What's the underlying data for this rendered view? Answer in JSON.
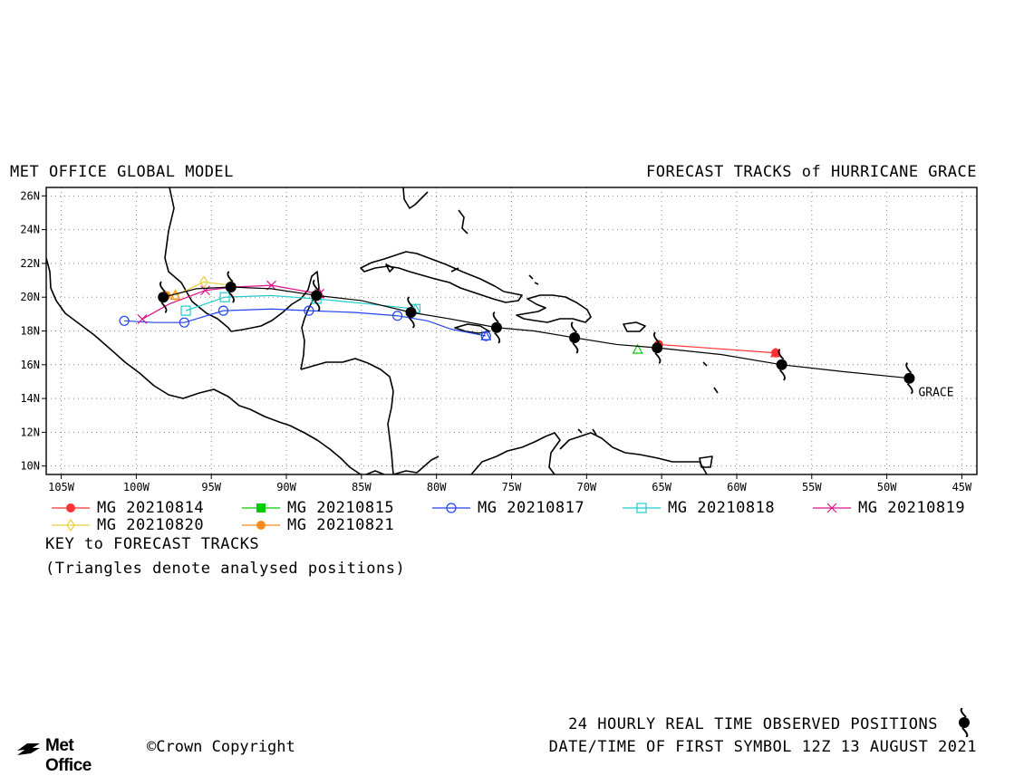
{
  "header": {
    "model": "MET OFFICE GLOBAL MODEL",
    "title": "FORECAST TRACKS of HURRICANE GRACE"
  },
  "map": {
    "lon_range": [
      -106,
      -44
    ],
    "lat_range": [
      9.5,
      26.5
    ],
    "x_ticks": [
      {
        "value": -105,
        "label": "105W"
      },
      {
        "value": -100,
        "label": "100W"
      },
      {
        "value": -95,
        "label": "95W"
      },
      {
        "value": -90,
        "label": "90W"
      },
      {
        "value": -85,
        "label": "85W"
      },
      {
        "value": -80,
        "label": "80W"
      },
      {
        "value": -75,
        "label": "75W"
      },
      {
        "value": -70,
        "label": "70W"
      },
      {
        "value": -65,
        "label": "65W"
      },
      {
        "value": -60,
        "label": "60W"
      },
      {
        "value": -55,
        "label": "55W"
      },
      {
        "value": -50,
        "label": "50W"
      },
      {
        "value": -45,
        "label": "45W"
      }
    ],
    "y_ticks": [
      {
        "value": 26,
        "label": "26N"
      },
      {
        "value": 24,
        "label": "24N"
      },
      {
        "value": 22,
        "label": "22N"
      },
      {
        "value": 20,
        "label": "20N"
      },
      {
        "value": 18,
        "label": "18N"
      },
      {
        "value": 16,
        "label": "16N"
      },
      {
        "value": 14,
        "label": "14N"
      },
      {
        "value": 12,
        "label": "12N"
      },
      {
        "value": 10,
        "label": "10N"
      }
    ],
    "grid": "dotted",
    "storm_label": "GRACE"
  },
  "observed_track": {
    "color": "#000000",
    "points": [
      [
        -48.5,
        15.2
      ],
      [
        -57.0,
        16.0
      ],
      [
        -65.3,
        17.0
      ],
      [
        -70.8,
        17.6
      ],
      [
        -76.0,
        18.2
      ],
      [
        -81.7,
        19.1
      ],
      [
        -88.0,
        20.1
      ],
      [
        -93.7,
        20.6
      ],
      [
        -98.2,
        20.0
      ]
    ],
    "line": [
      [
        -48.5,
        15.2
      ],
      [
        -53.0,
        15.6
      ],
      [
        -57.0,
        16.0
      ],
      [
        -61.0,
        16.6
      ],
      [
        -65.3,
        17.0
      ],
      [
        -68.0,
        17.2
      ],
      [
        -70.8,
        17.6
      ],
      [
        -73.5,
        18.0
      ],
      [
        -76.0,
        18.2
      ],
      [
        -79.0,
        18.7
      ],
      [
        -81.7,
        19.1
      ],
      [
        -85.0,
        19.8
      ],
      [
        -88.0,
        20.1
      ],
      [
        -91.0,
        20.5
      ],
      [
        -93.7,
        20.6
      ],
      [
        -96.0,
        20.5
      ],
      [
        -98.2,
        20.0
      ]
    ]
  },
  "forecast_tracks": [
    {
      "name": "MG 20210814",
      "color": "#ff3333",
      "marker": "filled-circle",
      "points": [
        [
          -57.4,
          16.7
        ],
        [
          -65.2,
          17.2
        ]
      ],
      "analysed": [
        [
          -57.4,
          16.7
        ]
      ]
    },
    {
      "name": "MG 20210815",
      "color": "#00cc00",
      "marker": "filled-square",
      "points": [],
      "analysed": [
        [
          -66.6,
          16.9
        ]
      ]
    },
    {
      "name": "MG 20210817",
      "color": "#2244ee",
      "marker": "open-circle",
      "points": [
        [
          -76.7,
          17.7
        ],
        [
          -82.6,
          18.9
        ],
        [
          -88.5,
          19.2
        ],
        [
          -94.2,
          19.2
        ],
        [
          -96.8,
          18.5
        ],
        [
          -100.8,
          18.6
        ]
      ],
      "line": [
        [
          -76.7,
          17.7
        ],
        [
          -79.0,
          18.1
        ],
        [
          -80.6,
          18.6
        ],
        [
          -82.6,
          18.9
        ],
        [
          -85.5,
          19.1
        ],
        [
          -88.5,
          19.2
        ],
        [
          -91.0,
          19.3
        ],
        [
          -94.2,
          19.2
        ],
        [
          -96.8,
          18.5
        ],
        [
          -98.8,
          18.5
        ],
        [
          -100.8,
          18.6
        ]
      ],
      "analysed": [
        [
          -76.7,
          17.7
        ]
      ]
    },
    {
      "name": "MG 20210818",
      "color": "#22cccc",
      "marker": "open-square",
      "points": [
        [
          -81.4,
          19.3
        ],
        [
          -88.0,
          19.9
        ],
        [
          -94.1,
          20.0
        ],
        [
          -96.7,
          19.2
        ]
      ],
      "line": [
        [
          -81.4,
          19.3
        ],
        [
          -84.5,
          19.6
        ],
        [
          -88.0,
          19.9
        ],
        [
          -91.0,
          20.1
        ],
        [
          -94.1,
          20.0
        ],
        [
          -96.7,
          19.2
        ]
      ],
      "analysed": [
        [
          -81.4,
          19.3
        ]
      ]
    },
    {
      "name": "MG 20210819",
      "color": "#dd1188",
      "marker": "x",
      "points": [
        [
          -87.8,
          20.2
        ],
        [
          -91.0,
          20.7
        ],
        [
          -95.4,
          20.4
        ],
        [
          -99.6,
          18.7
        ]
      ],
      "line": [
        [
          -87.8,
          20.2
        ],
        [
          -91.0,
          20.7
        ],
        [
          -93.5,
          20.6
        ],
        [
          -95.4,
          20.4
        ],
        [
          -97.8,
          19.6
        ],
        [
          -99.6,
          18.7
        ]
      ],
      "analysed": [
        [
          -87.8,
          20.2
        ]
      ]
    },
    {
      "name": "MG 20210820",
      "color": "#e8d040",
      "marker": "diamond",
      "points": [
        [
          -93.7,
          20.7
        ],
        [
          -95.5,
          20.9
        ],
        [
          -97.4,
          20.1
        ]
      ],
      "line": [
        [
          -93.7,
          20.7
        ],
        [
          -95.5,
          20.9
        ],
        [
          -97.4,
          20.1
        ]
      ],
      "analysed": [
        [
          -93.7,
          20.7
        ]
      ]
    },
    {
      "name": "MG 20210821",
      "color": "#ff8c1a",
      "marker": "filled-circle",
      "points": [
        [
          -98.0,
          20.1
        ]
      ],
      "analysed": [
        [
          -97.4,
          20.1
        ]
      ]
    }
  ],
  "legend": {
    "key_title": "KEY to FORECAST TRACKS",
    "key_note": "(Triangles denote analysed positions)"
  },
  "footer": {
    "observed_label": "24 HOURLY REAL TIME OBSERVED POSITIONS",
    "first_symbol": "DATE/TIME OF FIRST SYMBOL 12Z 13 AUGUST 2021",
    "brand": "Met Office",
    "copyright": "©Crown Copyright"
  }
}
